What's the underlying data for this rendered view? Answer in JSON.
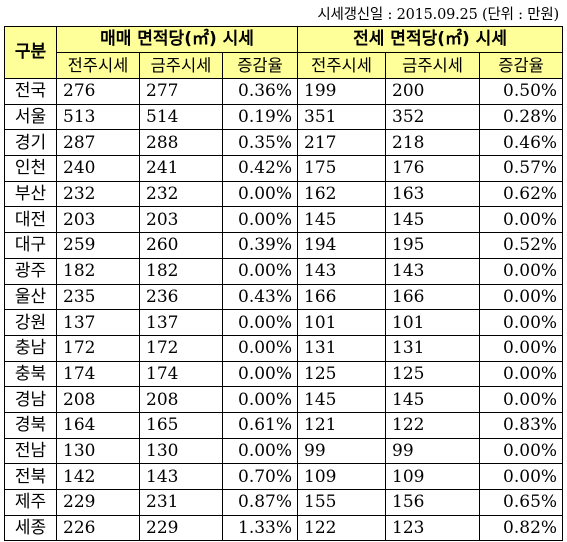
{
  "note": "시세갱신일 : 2015.09.25 (단위 : 만원)",
  "headers": {
    "region": "구분",
    "sale_group": "매매 면적당(㎡) 시세",
    "jeonse_group": "전세 면적당(㎡) 시세",
    "prev": "전주시세",
    "curr": "금주시세",
    "rate": "증감율"
  },
  "rows": [
    {
      "region": "전국",
      "sale_prev": "276",
      "sale_curr": "277",
      "sale_rate": "0.36%",
      "jeonse_prev": "199",
      "jeonse_curr": "200",
      "jeonse_rate": "0.50%"
    },
    {
      "region": "서울",
      "sale_prev": "513",
      "sale_curr": "514",
      "sale_rate": "0.19%",
      "jeonse_prev": "351",
      "jeonse_curr": "352",
      "jeonse_rate": "0.28%"
    },
    {
      "region": "경기",
      "sale_prev": "287",
      "sale_curr": "288",
      "sale_rate": "0.35%",
      "jeonse_prev": "217",
      "jeonse_curr": "218",
      "jeonse_rate": "0.46%"
    },
    {
      "region": "인천",
      "sale_prev": "240",
      "sale_curr": "241",
      "sale_rate": "0.42%",
      "jeonse_prev": "175",
      "jeonse_curr": "176",
      "jeonse_rate": "0.57%"
    },
    {
      "region": "부산",
      "sale_prev": "232",
      "sale_curr": "232",
      "sale_rate": "0.00%",
      "jeonse_prev": "162",
      "jeonse_curr": "163",
      "jeonse_rate": "0.62%"
    },
    {
      "region": "대전",
      "sale_prev": "203",
      "sale_curr": "203",
      "sale_rate": "0.00%",
      "jeonse_prev": "145",
      "jeonse_curr": "145",
      "jeonse_rate": "0.00%"
    },
    {
      "region": "대구",
      "sale_prev": "259",
      "sale_curr": "260",
      "sale_rate": "0.39%",
      "jeonse_prev": "194",
      "jeonse_curr": "195",
      "jeonse_rate": "0.52%"
    },
    {
      "region": "광주",
      "sale_prev": "182",
      "sale_curr": "182",
      "sale_rate": "0.00%",
      "jeonse_prev": "143",
      "jeonse_curr": "143",
      "jeonse_rate": "0.00%"
    },
    {
      "region": "울산",
      "sale_prev": "235",
      "sale_curr": "236",
      "sale_rate": "0.43%",
      "jeonse_prev": "166",
      "jeonse_curr": "166",
      "jeonse_rate": "0.00%"
    },
    {
      "region": "강원",
      "sale_prev": "137",
      "sale_curr": "137",
      "sale_rate": "0.00%",
      "jeonse_prev": "101",
      "jeonse_curr": "101",
      "jeonse_rate": "0.00%"
    },
    {
      "region": "충남",
      "sale_prev": "172",
      "sale_curr": "172",
      "sale_rate": "0.00%",
      "jeonse_prev": "131",
      "jeonse_curr": "131",
      "jeonse_rate": "0.00%"
    },
    {
      "region": "충북",
      "sale_prev": "174",
      "sale_curr": "174",
      "sale_rate": "0.00%",
      "jeonse_prev": "125",
      "jeonse_curr": "125",
      "jeonse_rate": "0.00%"
    },
    {
      "region": "경남",
      "sale_prev": "208",
      "sale_curr": "208",
      "sale_rate": "0.00%",
      "jeonse_prev": "145",
      "jeonse_curr": "145",
      "jeonse_rate": "0.00%"
    },
    {
      "region": "경북",
      "sale_prev": "164",
      "sale_curr": "165",
      "sale_rate": "0.61%",
      "jeonse_prev": "121",
      "jeonse_curr": "122",
      "jeonse_rate": "0.83%"
    },
    {
      "region": "전남",
      "sale_prev": "130",
      "sale_curr": "130",
      "sale_rate": "0.00%",
      "jeonse_prev": "99",
      "jeonse_curr": "99",
      "jeonse_rate": "0.00%"
    },
    {
      "region": "전북",
      "sale_prev": "142",
      "sale_curr": "143",
      "sale_rate": "0.70%",
      "jeonse_prev": "109",
      "jeonse_curr": "109",
      "jeonse_rate": "0.00%"
    },
    {
      "region": "제주",
      "sale_prev": "229",
      "sale_curr": "231",
      "sale_rate": "0.87%",
      "jeonse_prev": "155",
      "jeonse_curr": "156",
      "jeonse_rate": "0.65%"
    },
    {
      "region": "세종",
      "sale_prev": "226",
      "sale_curr": "229",
      "sale_rate": "1.33%",
      "jeonse_prev": "122",
      "jeonse_curr": "123",
      "jeonse_rate": "0.82%"
    }
  ],
  "colors": {
    "header_bg": "#ffff99",
    "border": "#000000"
  }
}
